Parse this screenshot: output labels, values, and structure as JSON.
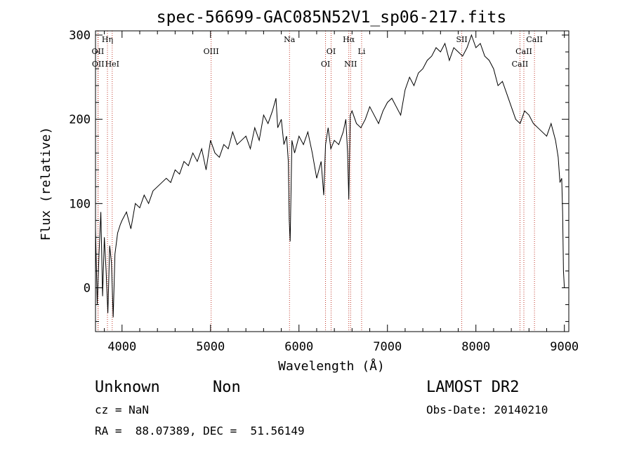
{
  "chart_data": {
    "type": "line",
    "title": "spec-56699-GAC085N52V1_sp06-217.fits",
    "xlabel": "Wavelength (Å)",
    "ylabel": "Flux (relative)",
    "xlim": [
      3700,
      9050
    ],
    "ylim": [
      -52,
      305
    ],
    "xticks": [
      4000,
      5000,
      6000,
      7000,
      8000,
      9000
    ],
    "yticks": [
      0,
      100,
      200,
      300
    ],
    "grid": false,
    "line_color": "#000000",
    "marker_color": "#c0392b",
    "spectrum": {
      "x": [
        3700,
        3720,
        3740,
        3760,
        3780,
        3800,
        3820,
        3840,
        3860,
        3880,
        3900,
        3920,
        3950,
        3980,
        4000,
        4050,
        4100,
        4150,
        4200,
        4250,
        4300,
        4350,
        4400,
        4450,
        4500,
        4550,
        4600,
        4650,
        4700,
        4750,
        4800,
        4850,
        4900,
        4950,
        5000,
        5050,
        5100,
        5150,
        5200,
        5250,
        5300,
        5350,
        5400,
        5450,
        5500,
        5550,
        5600,
        5650,
        5700,
        5740,
        5760,
        5800,
        5830,
        5860,
        5880,
        5890,
        5900,
        5920,
        5950,
        6000,
        6050,
        6100,
        6150,
        6200,
        6250,
        6280,
        6300,
        6330,
        6360,
        6400,
        6450,
        6500,
        6530,
        6550,
        6563,
        6580,
        6600,
        6650,
        6700,
        6750,
        6800,
        6850,
        6900,
        6950,
        7000,
        7050,
        7100,
        7150,
        7200,
        7250,
        7300,
        7350,
        7400,
        7450,
        7500,
        7550,
        7600,
        7650,
        7700,
        7750,
        7800,
        7850,
        7900,
        7950,
        8000,
        8050,
        8100,
        8150,
        8200,
        8250,
        8300,
        8350,
        8400,
        8450,
        8500,
        8550,
        8600,
        8650,
        8700,
        8750,
        8800,
        8850,
        8900,
        8930,
        8950,
        8970,
        8980,
        8990,
        9000
      ],
      "y": [
        70,
        -20,
        40,
        90,
        -10,
        60,
        20,
        -30,
        50,
        30,
        -35,
        40,
        65,
        75,
        80,
        90,
        70,
        100,
        95,
        110,
        100,
        115,
        120,
        125,
        130,
        125,
        140,
        135,
        150,
        145,
        160,
        150,
        165,
        140,
        175,
        160,
        155,
        170,
        165,
        185,
        170,
        175,
        180,
        165,
        190,
        175,
        205,
        195,
        210,
        225,
        190,
        200,
        170,
        180,
        150,
        80,
        55,
        175,
        160,
        180,
        170,
        185,
        160,
        130,
        150,
        110,
        170,
        190,
        165,
        175,
        170,
        185,
        200,
        160,
        105,
        205,
        210,
        195,
        190,
        200,
        215,
        205,
        195,
        210,
        220,
        225,
        215,
        205,
        235,
        250,
        240,
        255,
        260,
        270,
        275,
        285,
        280,
        290,
        270,
        285,
        280,
        275,
        285,
        300,
        285,
        290,
        275,
        270,
        260,
        240,
        245,
        230,
        215,
        200,
        195,
        210,
        205,
        195,
        190,
        185,
        180,
        195,
        175,
        155,
        125,
        130,
        90,
        20,
        0
      ]
    },
    "lines": [
      {
        "label": "OII",
        "x": 3727,
        "row": 2
      },
      {
        "label": "OII",
        "x": 3730,
        "row": 3
      },
      {
        "label": "Hη",
        "x": 3835,
        "row": 1
      },
      {
        "label": "HeI",
        "x": 3889,
        "row": 3
      },
      {
        "label": "OIII",
        "x": 5007,
        "row": 2
      },
      {
        "label": "Na",
        "x": 5893,
        "row": 1
      },
      {
        "label": "OI",
        "x": 6300,
        "row": 3
      },
      {
        "label": "OI",
        "x": 6363,
        "row": 2
      },
      {
        "label": "Hα",
        "x": 6563,
        "row": 1
      },
      {
        "label": "NII",
        "x": 6584,
        "row": 3
      },
      {
        "label": "Li",
        "x": 6708,
        "row": 2
      },
      {
        "label": "SII",
        "x": 7840,
        "row": 1
      },
      {
        "label": "CaII",
        "x": 8498,
        "row": 3
      },
      {
        "label": "CaII",
        "x": 8542,
        "row": 2
      },
      {
        "label": "CaII",
        "x": 8662,
        "row": 1
      }
    ]
  },
  "info": {
    "object_class": "Unknown",
    "subclass": "Non",
    "survey": "LAMOST DR2",
    "cz": "cz = NaN",
    "obs_date": "Obs-Date: 20140210",
    "coords": "RA =  88.07389, DEC =  51.56149"
  }
}
